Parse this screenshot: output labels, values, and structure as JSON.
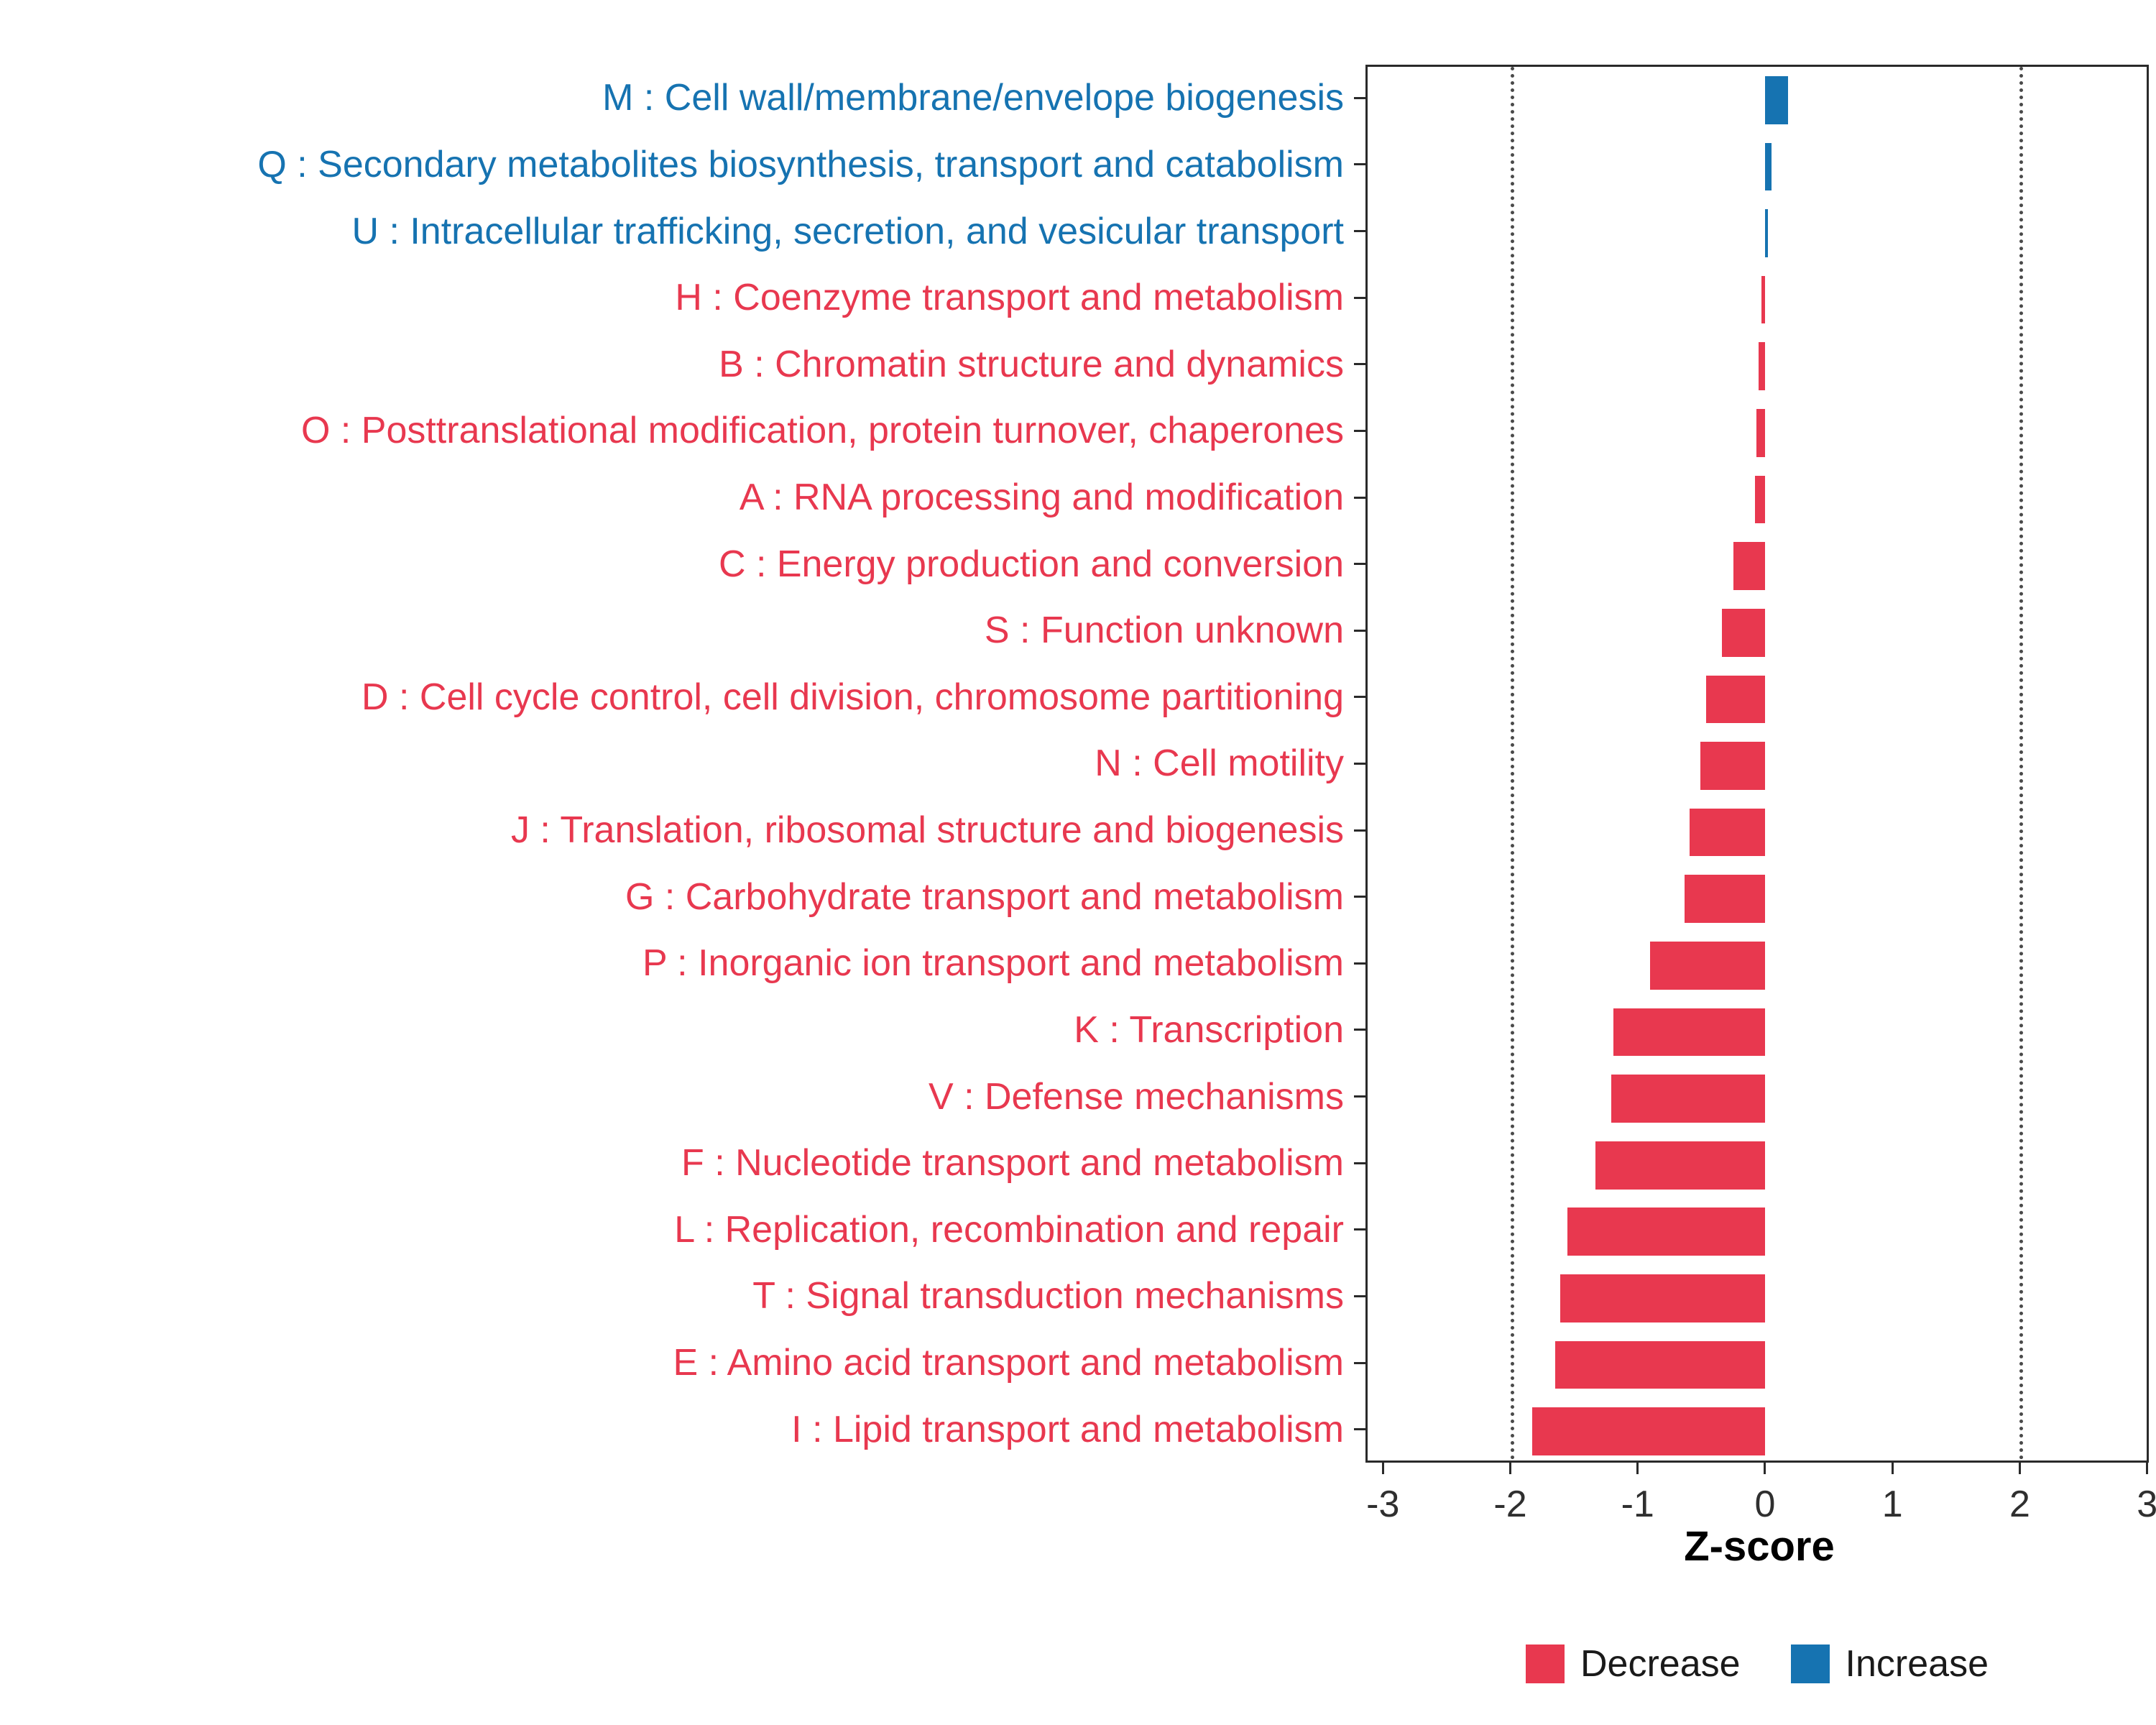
{
  "chart_data": {
    "type": "bar",
    "orientation": "horizontal",
    "title": "",
    "xlabel": "Z-score",
    "ylabel": "",
    "xlim": [
      -3.12,
      3.03
    ],
    "x_ticks": [
      -3,
      -2,
      -1,
      0,
      1,
      2,
      3
    ],
    "reference_lines": [
      -2,
      2
    ],
    "grid": "dotted vertical lines at -2 and 2",
    "legend_position": "bottom-center",
    "categories": [
      "M : Cell wall/membrane/envelope biogenesis",
      "Q : Secondary metabolites biosynthesis, transport and catabolism",
      "U : Intracellular trafficking, secretion, and vesicular transport",
      "H : Coenzyme transport and metabolism",
      "B : Chromatin structure and dynamics",
      "O : Posttranslational modification, protein turnover, chaperones",
      "A : RNA processing and modification",
      "C : Energy production and conversion",
      "S : Function unknown",
      "D : Cell cycle control, cell division, chromosome partitioning",
      "N : Cell motility",
      "J : Translation, ribosomal structure and biogenesis",
      "G : Carbohydrate transport and metabolism",
      "P : Inorganic ion transport and metabolism",
      "K : Transcription",
      "V : Defense mechanisms",
      "F : Nucleotide transport and metabolism",
      "L : Replication, recombination and repair",
      "T : Signal transduction mechanisms",
      "E : Amino acid transport and metabolism",
      "I : Lipid transport and metabolism"
    ],
    "values": [
      0.18,
      0.05,
      0.02,
      -0.03,
      -0.05,
      -0.07,
      -0.08,
      -0.25,
      -0.34,
      -0.46,
      -0.51,
      -0.59,
      -0.63,
      -0.9,
      -1.19,
      -1.21,
      -1.33,
      -1.55,
      -1.61,
      -1.65,
      -1.83
    ],
    "groups": [
      "Increase",
      "Increase",
      "Increase",
      "Decrease",
      "Decrease",
      "Decrease",
      "Decrease",
      "Decrease",
      "Decrease",
      "Decrease",
      "Decrease",
      "Decrease",
      "Decrease",
      "Decrease",
      "Decrease",
      "Decrease",
      "Decrease",
      "Decrease",
      "Decrease",
      "Decrease",
      "Decrease"
    ],
    "colors": {
      "Decrease": "#E8384F",
      "Increase": "#1673B1"
    },
    "legend": [
      {
        "label": "Decrease",
        "color": "#E8384F"
      },
      {
        "label": "Increase",
        "color": "#1673B1"
      }
    ]
  }
}
